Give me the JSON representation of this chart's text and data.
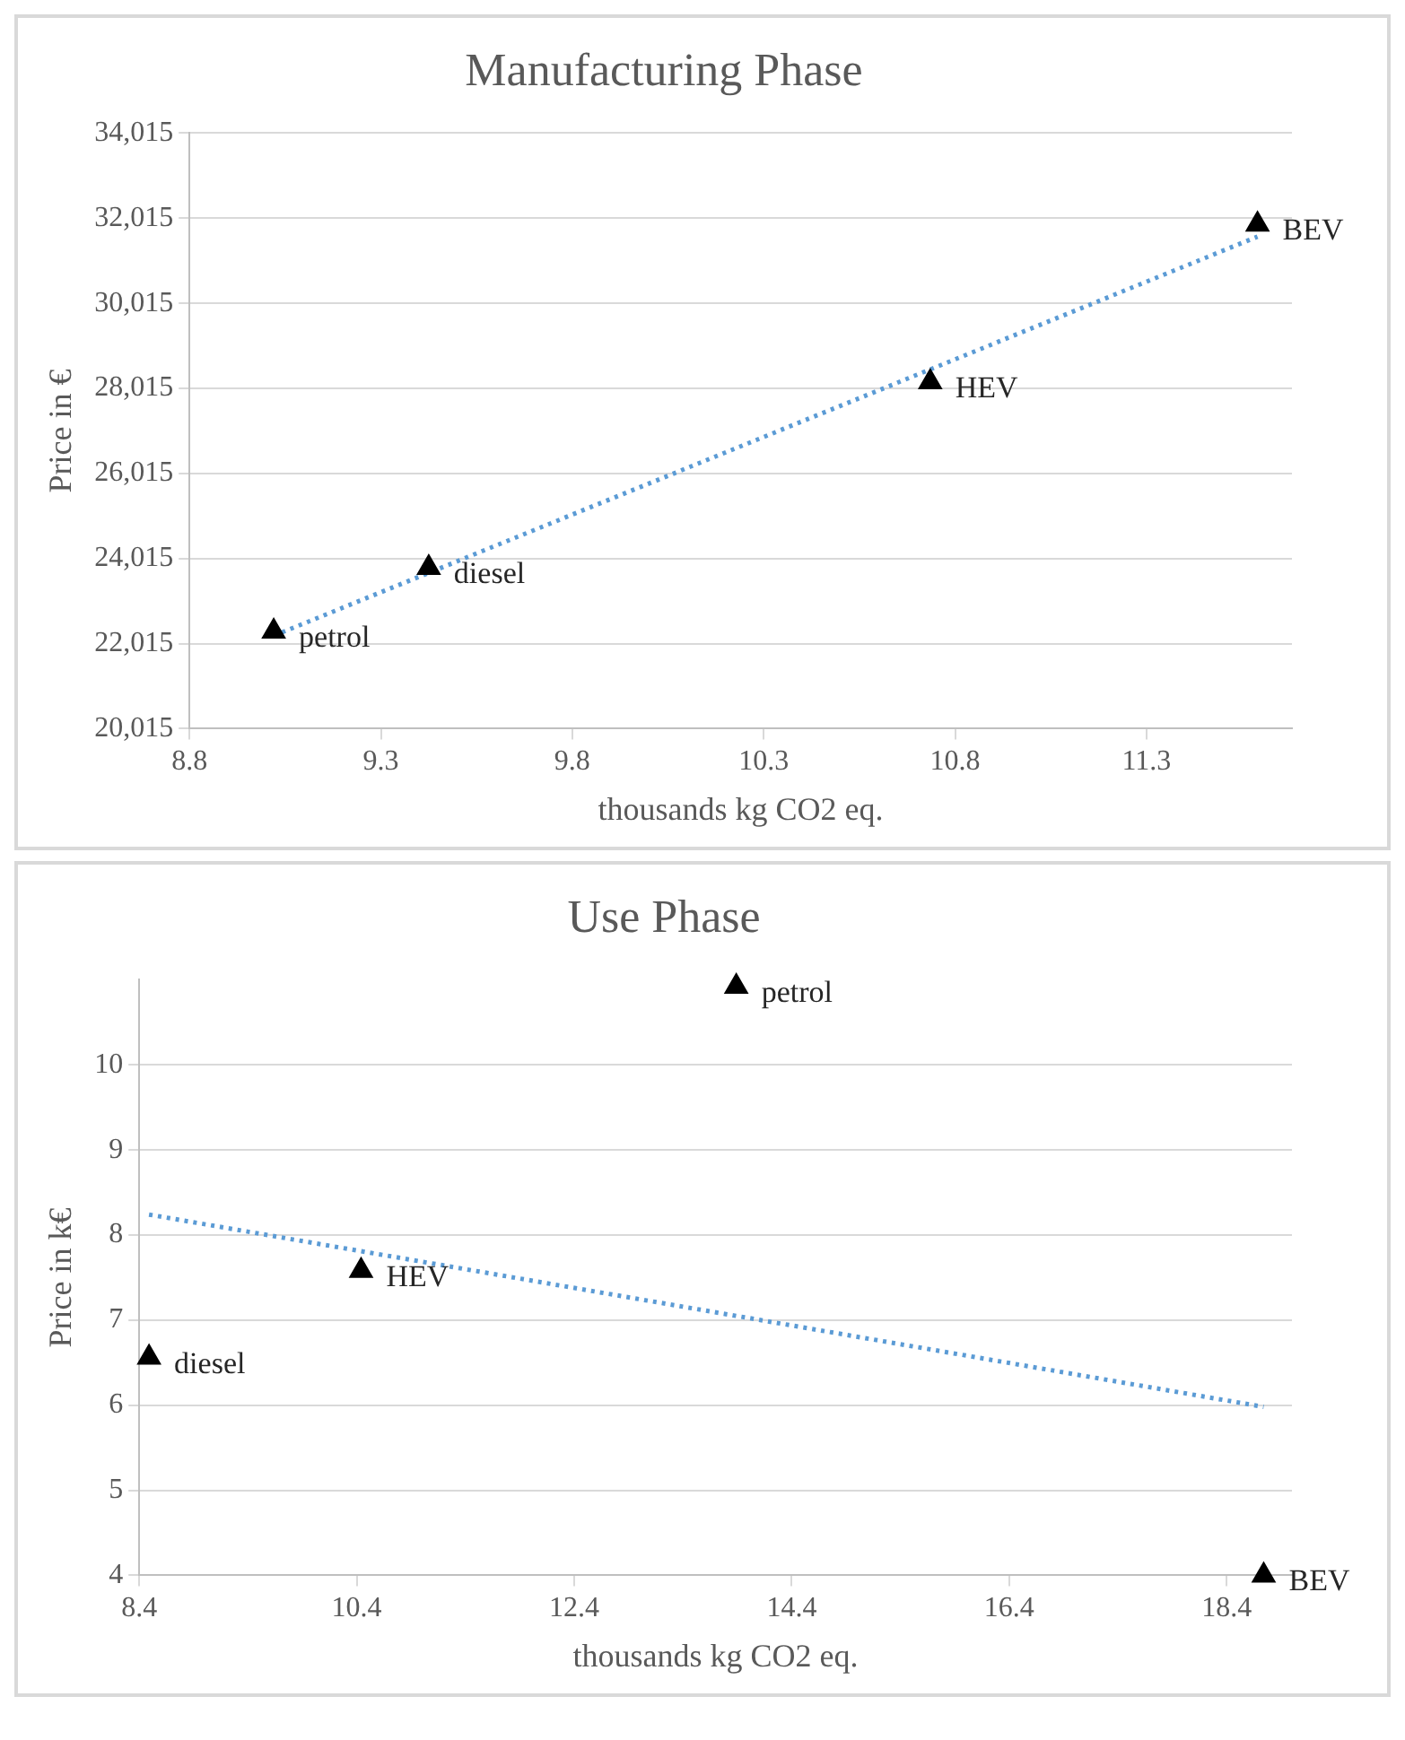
{
  "chart_data": [
    {
      "type": "scatter",
      "title": "Manufacturing Phase",
      "xlabel": "thousands kg CO2 eq.",
      "ylabel": "Price in €",
      "marker": "triangle",
      "grid": "y",
      "xlim": [
        8.8,
        11.68
      ],
      "xticks": [
        8.8,
        9.3,
        9.8,
        10.3,
        10.8,
        11.3
      ],
      "ylim": [
        20015,
        34015
      ],
      "yticks": [
        {
          "value": 20015,
          "label": "20,015"
        },
        {
          "value": 22015,
          "label": "22,015"
        },
        {
          "value": 24015,
          "label": "24,015"
        },
        {
          "value": 26015,
          "label": "26,015"
        },
        {
          "value": 28015,
          "label": "28,015"
        },
        {
          "value": 30015,
          "label": "30,015"
        },
        {
          "value": 32015,
          "label": "32,015"
        },
        {
          "value": 34015,
          "label": "34,015"
        }
      ],
      "series": [
        {
          "type": "scatter",
          "color": "#000000",
          "x": [
            9.02,
            9.425,
            10.735,
            11.59
          ],
          "values": [
            22300,
            23800,
            28160,
            31870
          ]
        },
        {
          "type": "line",
          "color": "#5b9bd5",
          "line_style": "dotted",
          "marker": "none",
          "x": [
            9.02,
            11.59
          ],
          "values": [
            22200,
            31580
          ]
        }
      ],
      "annotations": [
        {
          "text": "petrol",
          "x": 9.02,
          "y": 22300
        },
        {
          "text": "diesel",
          "x": 9.425,
          "y": 23800
        },
        {
          "text": "HEV",
          "x": 10.735,
          "y": 28160
        },
        {
          "text": "BEV",
          "x": 11.59,
          "y": 31870
        }
      ]
    },
    {
      "type": "scatter",
      "title": "Use Phase",
      "xlabel": "thousands kg CO2 eq.",
      "ylabel": "Price in k€",
      "marker": "triangle",
      "grid": "y",
      "xlim": [
        8.4,
        19
      ],
      "xticks": [
        8.4,
        10.4,
        12.4,
        14.4,
        16.4,
        18.4
      ],
      "ylim": [
        4,
        11
      ],
      "yticks": [
        4,
        5,
        6,
        7,
        8,
        9,
        10
      ],
      "series": [
        {
          "type": "scatter",
          "color": "#000000",
          "x": [
            13.89,
            8.49,
            10.44,
            18.74
          ],
          "values": [
            10.92,
            6.56,
            7.58,
            4.0
          ]
        },
        {
          "type": "line",
          "color": "#5b9bd5",
          "line_style": "dotted",
          "marker": "none",
          "x": [
            8.49,
            18.74
          ],
          "values": [
            8.24,
            5.98
          ]
        }
      ],
      "annotations": [
        {
          "text": "petrol",
          "x": 13.89,
          "y": 10.92
        },
        {
          "text": "diesel",
          "x": 8.49,
          "y": 6.56
        },
        {
          "text": "HEV",
          "x": 10.44,
          "y": 7.58
        },
        {
          "text": "BEV",
          "x": 18.74,
          "y": 4.0
        }
      ]
    }
  ]
}
